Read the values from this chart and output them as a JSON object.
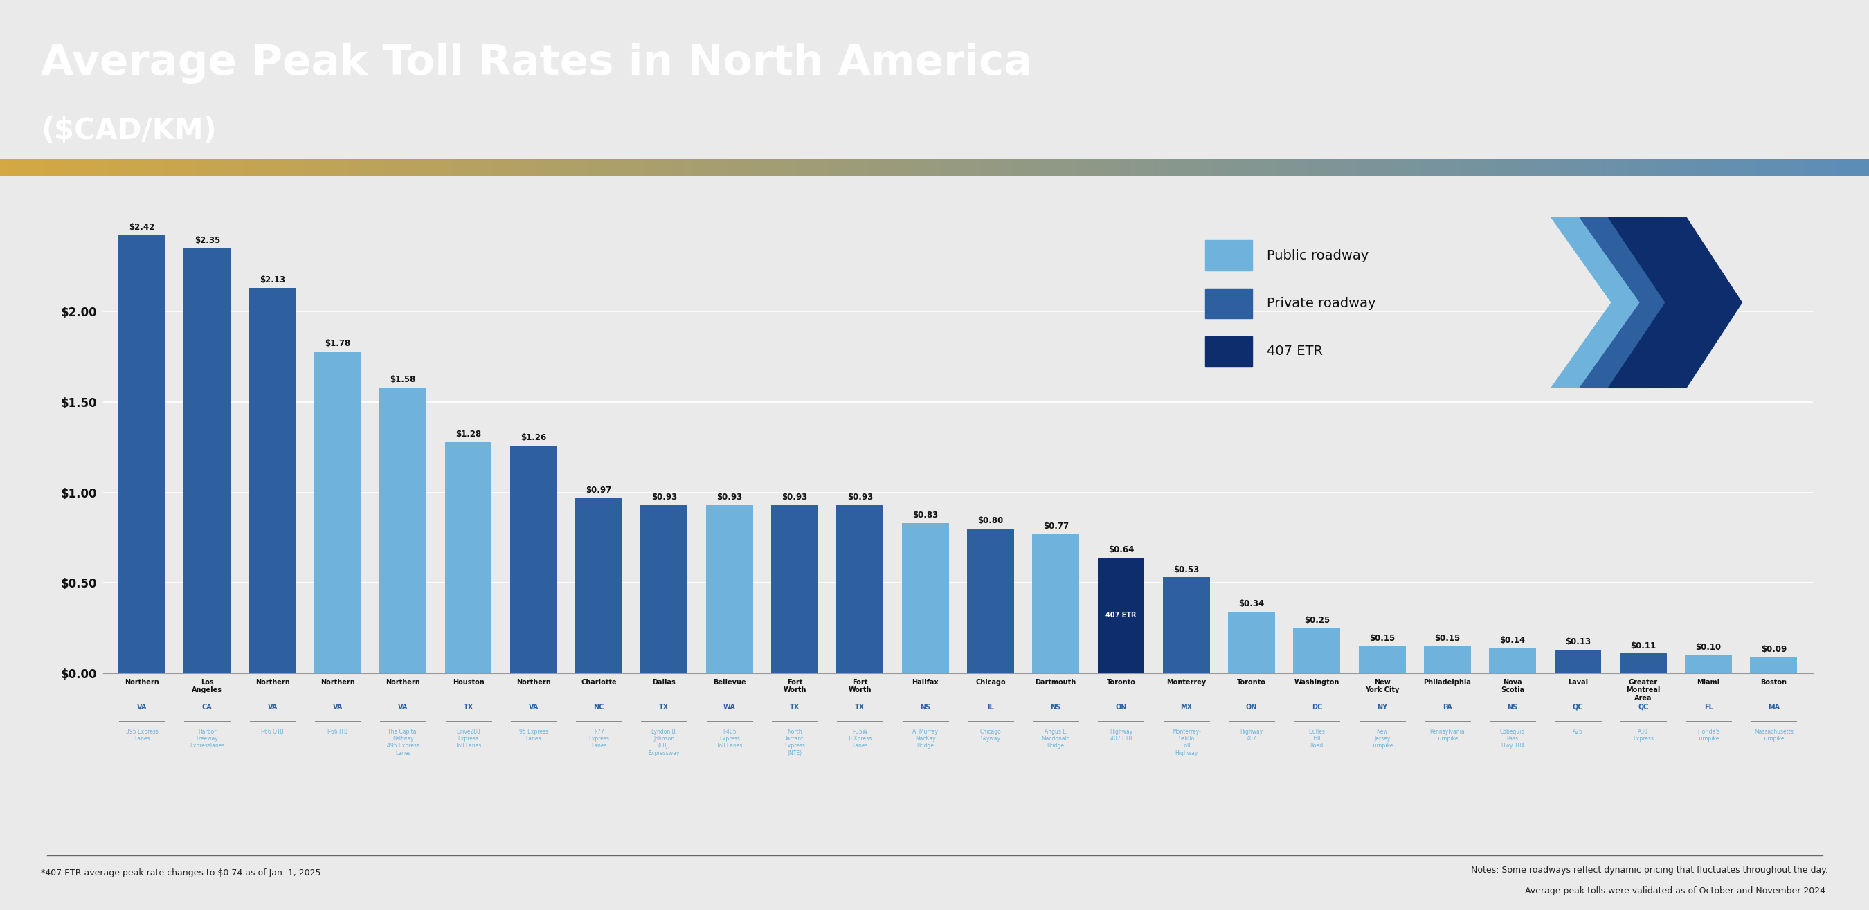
{
  "title_line1": "Average Peak Toll Rates in North America",
  "title_line2": "($CAD/KM)",
  "header_bg_color": "#0D2D6C",
  "stripe_blue": "#5B8DB8",
  "chart_bg_color": "#EAEAEA",
  "bars": [
    {
      "value": 2.42,
      "city": "Northern",
      "state": "VA",
      "road": "395 Express\nLanes",
      "color": "#2E60A0",
      "type": "private"
    },
    {
      "value": 2.35,
      "city": "Los\nAngeles",
      "state": "CA",
      "road": "Harbor\nFreeway\nExpresslanes",
      "color": "#2E60A0",
      "type": "private"
    },
    {
      "value": 2.13,
      "city": "Northern",
      "state": "VA",
      "road": "I-66 OTB",
      "color": "#2E60A0",
      "type": "private"
    },
    {
      "value": 1.78,
      "city": "Northern",
      "state": "VA",
      "road": "I-66 ITB",
      "color": "#6FB3DC",
      "type": "public"
    },
    {
      "value": 1.58,
      "city": "Northern",
      "state": "VA",
      "road": "The Capital\nBeltway\n495 Express\nLanes",
      "color": "#6FB3DC",
      "type": "public"
    },
    {
      "value": 1.28,
      "city": "Houston",
      "state": "TX",
      "road": "Drive288\nExpress\nToll Lanes",
      "color": "#6FB3DC",
      "type": "public"
    },
    {
      "value": 1.26,
      "city": "Northern",
      "state": "VA",
      "road": "95 Express\nLanes",
      "color": "#2E60A0",
      "type": "private"
    },
    {
      "value": 0.97,
      "city": "Charlotte",
      "state": "NC",
      "road": "I-77\nExpress\nLanes",
      "color": "#2E60A0",
      "type": "private"
    },
    {
      "value": 0.93,
      "city": "Dallas",
      "state": "TX",
      "road": "Lyndon B.\nJohnson\n(LBJ)\nExpressway",
      "color": "#2E60A0",
      "type": "private"
    },
    {
      "value": 0.93,
      "city": "Bellevue",
      "state": "WA",
      "road": "I-405\nExpress\nToll Lanes",
      "color": "#6FB3DC",
      "type": "public"
    },
    {
      "value": 0.93,
      "city": "Fort\nWorth",
      "state": "TX",
      "road": "North\nTarrant\nExpress\n(NTE)",
      "color": "#2E60A0",
      "type": "private"
    },
    {
      "value": 0.93,
      "city": "Fort\nWorth",
      "state": "TX",
      "road": "I-35W\nTEXpress\nLanes",
      "color": "#2E60A0",
      "type": "private"
    },
    {
      "value": 0.83,
      "city": "Halifax",
      "state": "NS",
      "road": "A. Murray\nMacKay\nBridge",
      "color": "#6FB3DC",
      "type": "public"
    },
    {
      "value": 0.8,
      "city": "Chicago",
      "state": "IL",
      "road": "Chicago\nSkyway",
      "color": "#2E60A0",
      "type": "private"
    },
    {
      "value": 0.77,
      "city": "Dartmouth",
      "state": "NS",
      "road": "Angus L.\nMacdonald\nBridge",
      "color": "#6FB3DC",
      "type": "public"
    },
    {
      "value": 0.64,
      "city": "Toronto",
      "state": "ON",
      "road": "Highway\n407 ETR",
      "color": "#0D2D6C",
      "type": "407etr"
    },
    {
      "value": 0.53,
      "city": "Monterrey",
      "state": "MX",
      "road": "Monterrey-\nSalillo\nToll\nHighway",
      "color": "#2E60A0",
      "type": "private"
    },
    {
      "value": 0.34,
      "city": "Toronto",
      "state": "ON",
      "road": "Highway\n407",
      "color": "#6FB3DC",
      "type": "public"
    },
    {
      "value": 0.25,
      "city": "Washington",
      "state": "DC",
      "road": "Dulles\nToll\nRoad",
      "color": "#6FB3DC",
      "type": "public"
    },
    {
      "value": 0.15,
      "city": "New\nYork City",
      "state": "NY",
      "road": "New\nJersey\nTurnpike",
      "color": "#6FB3DC",
      "type": "public"
    },
    {
      "value": 0.15,
      "city": "Philadelphia",
      "state": "PA",
      "road": "Pennsylvania\nTurnpike",
      "color": "#6FB3DC",
      "type": "public"
    },
    {
      "value": 0.14,
      "city": "Nova\nScotia",
      "state": "NS",
      "road": "Cobequid\nPass\nHwy 104",
      "color": "#6FB3DC",
      "type": "public"
    },
    {
      "value": 0.13,
      "city": "Laval",
      "state": "QC",
      "road": "A25",
      "color": "#2E60A0",
      "type": "private"
    },
    {
      "value": 0.11,
      "city": "Greater\nMontreal\nArea",
      "state": "QC",
      "road": "A30\nExpress",
      "color": "#2E60A0",
      "type": "private"
    },
    {
      "value": 0.1,
      "city": "Miami",
      "state": "FL",
      "road": "Florida's\nTurnpike",
      "color": "#6FB3DC",
      "type": "public"
    },
    {
      "value": 0.09,
      "city": "Boston",
      "state": "MA",
      "road": "Massachusetts\nTurnpike",
      "color": "#6FB3DC",
      "type": "public"
    }
  ],
  "yticks": [
    0.0,
    0.5,
    1.0,
    1.5,
    2.0
  ],
  "ytick_labels": [
    "$0.00",
    "$0.50",
    "$1.00",
    "$1.50",
    "$2.00"
  ],
  "legend": {
    "public_color": "#6FB3DC",
    "private_color": "#2E60A0",
    "etr_color": "#0D2D6C",
    "public_label": "Public roadway",
    "private_label": "Private roadway",
    "etr_label": "407 ETR"
  },
  "footnote1": "*407 ETR average peak rate changes to $0.74 as of Jan. 1, 2025",
  "footnote2_line1": "Notes: Some roadways reflect dynamic pricing that fluctuates throughout the day.",
  "footnote2_line2": "Average peak tolls were validated as of October and November 2024."
}
